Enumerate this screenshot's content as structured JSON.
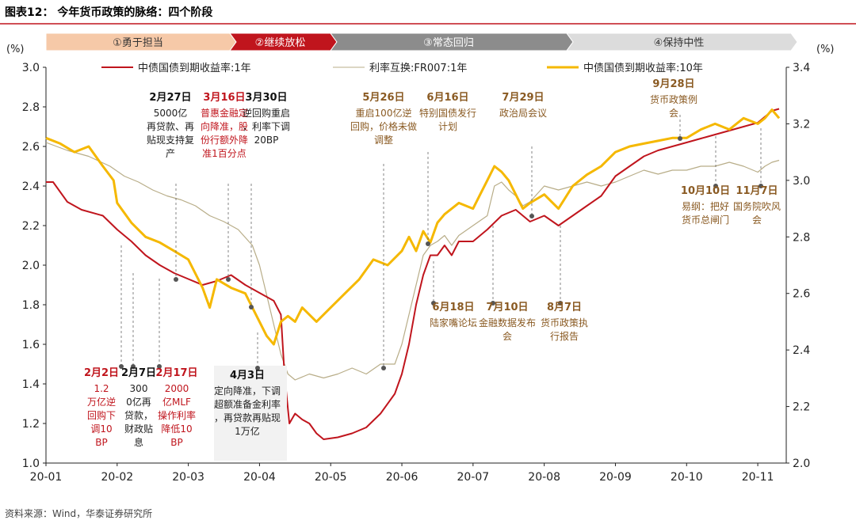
{
  "title": "图表12：  今年货币政策的脉络：四个阶段",
  "source": "资料来源：Wind，华泰证券研究所",
  "stages": [
    {
      "label": "①勇于担当",
      "color": "#f6c9a8",
      "text_color": "#333333"
    },
    {
      "label": "②继续放松",
      "color": "#c0151d",
      "text_color": "#ffffff"
    },
    {
      "label": "③常态回归",
      "color": "#8c8c8c",
      "text_color": "#ffffff"
    },
    {
      "label": "④保持中性",
      "color": "#dcdcdc",
      "text_color": "#333333"
    }
  ],
  "chart_data": {
    "type": "line",
    "left_unit": "(%)",
    "right_unit": "(%)",
    "left_axis": {
      "min": 1.0,
      "max": 3.0,
      "ticks": [
        "1.0",
        "1.2",
        "1.4",
        "1.6",
        "1.8",
        "2.0",
        "2.2",
        "2.4",
        "2.6",
        "2.8",
        "3.0"
      ]
    },
    "right_axis": {
      "min": 2.0,
      "max": 3.4,
      "ticks": [
        "2.0",
        "2.2",
        "2.4",
        "2.6",
        "2.8",
        "3.0",
        "3.2",
        "3.4"
      ]
    },
    "x_labels": [
      "20-01",
      "20-02",
      "20-03",
      "20-04",
      "20-05",
      "20-06",
      "20-07",
      "20-08",
      "20-09",
      "20-10",
      "20-11"
    ],
    "series": [
      {
        "name": "中债国债到期收益率:1年",
        "axis": "left",
        "color": "#c0151d",
        "points": [
          [
            0,
            2.42
          ],
          [
            0.1,
            2.42
          ],
          [
            0.3,
            2.32
          ],
          [
            0.5,
            2.28
          ],
          [
            0.8,
            2.25
          ],
          [
            1.0,
            2.18
          ],
          [
            1.2,
            2.12
          ],
          [
            1.4,
            2.05
          ],
          [
            1.6,
            2.0
          ],
          [
            1.8,
            1.96
          ],
          [
            2.0,
            1.93
          ],
          [
            2.2,
            1.9
          ],
          [
            2.4,
            1.92
          ],
          [
            2.6,
            1.95
          ],
          [
            2.8,
            1.9
          ],
          [
            3.0,
            1.86
          ],
          [
            3.2,
            1.82
          ],
          [
            3.3,
            1.75
          ],
          [
            3.35,
            1.45
          ],
          [
            3.42,
            1.2
          ],
          [
            3.5,
            1.25
          ],
          [
            3.6,
            1.22
          ],
          [
            3.7,
            1.2
          ],
          [
            3.8,
            1.15
          ],
          [
            3.9,
            1.12
          ],
          [
            4.1,
            1.13
          ],
          [
            4.3,
            1.15
          ],
          [
            4.5,
            1.18
          ],
          [
            4.7,
            1.25
          ],
          [
            4.9,
            1.35
          ],
          [
            5.0,
            1.45
          ],
          [
            5.1,
            1.6
          ],
          [
            5.2,
            1.8
          ],
          [
            5.3,
            1.95
          ],
          [
            5.4,
            2.05
          ],
          [
            5.5,
            2.05
          ],
          [
            5.6,
            2.1
          ],
          [
            5.7,
            2.05
          ],
          [
            5.8,
            2.12
          ],
          [
            6.0,
            2.12
          ],
          [
            6.2,
            2.18
          ],
          [
            6.4,
            2.25
          ],
          [
            6.6,
            2.28
          ],
          [
            6.8,
            2.22
          ],
          [
            7.0,
            2.25
          ],
          [
            7.2,
            2.2
          ],
          [
            7.4,
            2.25
          ],
          [
            7.6,
            2.3
          ],
          [
            7.8,
            2.35
          ],
          [
            8.0,
            2.45
          ],
          [
            8.2,
            2.5
          ],
          [
            8.4,
            2.55
          ],
          [
            8.6,
            2.58
          ],
          [
            8.8,
            2.6
          ],
          [
            9.0,
            2.62
          ],
          [
            9.2,
            2.64
          ],
          [
            9.4,
            2.66
          ],
          [
            9.6,
            2.68
          ],
          [
            9.8,
            2.7
          ],
          [
            10.0,
            2.72
          ],
          [
            10.1,
            2.75
          ],
          [
            10.2,
            2.78
          ],
          [
            10.3,
            2.79
          ]
        ]
      },
      {
        "name": "利率互换:FR007:1年",
        "axis": "left",
        "color": "#b8ad88",
        "points": [
          [
            0,
            2.62
          ],
          [
            0.3,
            2.58
          ],
          [
            0.6,
            2.55
          ],
          [
            0.9,
            2.5
          ],
          [
            1.1,
            2.45
          ],
          [
            1.3,
            2.42
          ],
          [
            1.5,
            2.38
          ],
          [
            1.7,
            2.35
          ],
          [
            1.9,
            2.33
          ],
          [
            2.1,
            2.3
          ],
          [
            2.3,
            2.25
          ],
          [
            2.5,
            2.22
          ],
          [
            2.7,
            2.18
          ],
          [
            2.9,
            2.1
          ],
          [
            3.0,
            2.0
          ],
          [
            3.1,
            1.85
          ],
          [
            3.2,
            1.7
          ],
          [
            3.3,
            1.55
          ],
          [
            3.4,
            1.45
          ],
          [
            3.5,
            1.42
          ],
          [
            3.7,
            1.45
          ],
          [
            3.9,
            1.43
          ],
          [
            4.1,
            1.45
          ],
          [
            4.3,
            1.48
          ],
          [
            4.5,
            1.45
          ],
          [
            4.7,
            1.5
          ],
          [
            4.9,
            1.5
          ],
          [
            5.0,
            1.6
          ],
          [
            5.1,
            1.75
          ],
          [
            5.2,
            1.9
          ],
          [
            5.3,
            2.05
          ],
          [
            5.4,
            2.1
          ],
          [
            5.5,
            2.12
          ],
          [
            5.6,
            2.15
          ],
          [
            5.7,
            2.1
          ],
          [
            5.8,
            2.15
          ],
          [
            6.0,
            2.2
          ],
          [
            6.2,
            2.25
          ],
          [
            6.3,
            2.4
          ],
          [
            6.4,
            2.42
          ],
          [
            6.5,
            2.38
          ],
          [
            6.6,
            2.35
          ],
          [
            6.7,
            2.3
          ],
          [
            6.8,
            2.32
          ],
          [
            7.0,
            2.4
          ],
          [
            7.2,
            2.38
          ],
          [
            7.4,
            2.4
          ],
          [
            7.6,
            2.42
          ],
          [
            7.8,
            2.4
          ],
          [
            8.0,
            2.42
          ],
          [
            8.2,
            2.45
          ],
          [
            8.4,
            2.48
          ],
          [
            8.6,
            2.46
          ],
          [
            8.8,
            2.48
          ],
          [
            9.0,
            2.48
          ],
          [
            9.2,
            2.5
          ],
          [
            9.4,
            2.5
          ],
          [
            9.6,
            2.52
          ],
          [
            9.8,
            2.5
          ],
          [
            10.0,
            2.47
          ],
          [
            10.1,
            2.5
          ],
          [
            10.2,
            2.52
          ],
          [
            10.3,
            2.53
          ]
        ]
      },
      {
        "name": "中债国债到期收益率:10年",
        "axis": "right",
        "color": "#f5b800",
        "points": [
          [
            0,
            3.15
          ],
          [
            0.2,
            3.13
          ],
          [
            0.4,
            3.1
          ],
          [
            0.6,
            3.12
          ],
          [
            0.8,
            3.05
          ],
          [
            0.95,
            3.0
          ],
          [
            1.0,
            2.92
          ],
          [
            1.2,
            2.85
          ],
          [
            1.4,
            2.8
          ],
          [
            1.6,
            2.78
          ],
          [
            1.8,
            2.75
          ],
          [
            2.0,
            2.72
          ],
          [
            2.2,
            2.62
          ],
          [
            2.3,
            2.55
          ],
          [
            2.4,
            2.65
          ],
          [
            2.6,
            2.62
          ],
          [
            2.8,
            2.6
          ],
          [
            2.9,
            2.55
          ],
          [
            3.0,
            2.5
          ],
          [
            3.1,
            2.45
          ],
          [
            3.2,
            2.42
          ],
          [
            3.3,
            2.5
          ],
          [
            3.4,
            2.52
          ],
          [
            3.5,
            2.5
          ],
          [
            3.6,
            2.55
          ],
          [
            3.8,
            2.5
          ],
          [
            4.0,
            2.55
          ],
          [
            4.2,
            2.6
          ],
          [
            4.4,
            2.65
          ],
          [
            4.6,
            2.72
          ],
          [
            4.8,
            2.7
          ],
          [
            5.0,
            2.75
          ],
          [
            5.1,
            2.8
          ],
          [
            5.2,
            2.75
          ],
          [
            5.3,
            2.82
          ],
          [
            5.4,
            2.78
          ],
          [
            5.5,
            2.85
          ],
          [
            5.6,
            2.88
          ],
          [
            5.7,
            2.9
          ],
          [
            5.8,
            2.92
          ],
          [
            6.0,
            2.9
          ],
          [
            6.1,
            2.95
          ],
          [
            6.2,
            3.0
          ],
          [
            6.3,
            3.05
          ],
          [
            6.4,
            3.03
          ],
          [
            6.5,
            3.0
          ],
          [
            6.6,
            2.95
          ],
          [
            6.7,
            2.9
          ],
          [
            6.8,
            2.92
          ],
          [
            7.0,
            2.95
          ],
          [
            7.2,
            2.9
          ],
          [
            7.4,
            2.98
          ],
          [
            7.6,
            3.02
          ],
          [
            7.8,
            3.05
          ],
          [
            8.0,
            3.1
          ],
          [
            8.2,
            3.12
          ],
          [
            8.4,
            3.13
          ],
          [
            8.6,
            3.14
          ],
          [
            8.8,
            3.15
          ],
          [
            9.0,
            3.15
          ],
          [
            9.2,
            3.18
          ],
          [
            9.4,
            3.2
          ],
          [
            9.6,
            3.18
          ],
          [
            9.8,
            3.22
          ],
          [
            10.0,
            3.2
          ],
          [
            10.1,
            3.22
          ],
          [
            10.2,
            3.25
          ],
          [
            10.3,
            3.22
          ]
        ]
      }
    ],
    "annotations": [
      {
        "date": "2月2日",
        "text": "1.2万亿逆回购下调10BP",
        "red": true
      },
      {
        "date": "2月7日",
        "text": "3000亿再贷款，财政贴息",
        "red": false
      },
      {
        "date": "2月17日",
        "text": "2000亿MLF操作利率降低10BP",
        "red": true
      },
      {
        "date": "2月27日",
        "text": "5000亿再贷款、再贴现支持复产",
        "red": false
      },
      {
        "date": "3月16日",
        "text": "普惠金融定向降准，股份行额外降准1百分点",
        "red": true
      },
      {
        "date": "3月30日",
        "text": "逆回购重启，利率下调20BP",
        "red": false
      },
      {
        "date": "4月3日",
        "text": "定向降准，下调超额准备金利率，再贷款再贴现1万亿",
        "red": false
      },
      {
        "date": "5月26日",
        "text": "重启100亿逆回购，价格未做调整",
        "red": false
      },
      {
        "date": "6月16日",
        "text": "特别国债发行计划",
        "red": false
      },
      {
        "date": "6月18日",
        "text": "陆家嘴论坛",
        "red": false
      },
      {
        "date": "7月10日",
        "text": "金融数据发布会",
        "red": false
      },
      {
        "date": "7月29日",
        "text": "政治局会议",
        "red": false
      },
      {
        "date": "8月7日",
        "text": "货币政策执行报告",
        "red": false
      },
      {
        "date": "9月28日",
        "text": "货币政策例会",
        "red": false
      },
      {
        "date": "10月10日",
        "text": "易纲：把好货币总闸门",
        "red": false
      },
      {
        "date": "11月7日",
        "text": "国务院吹风会",
        "red": false
      }
    ]
  }
}
